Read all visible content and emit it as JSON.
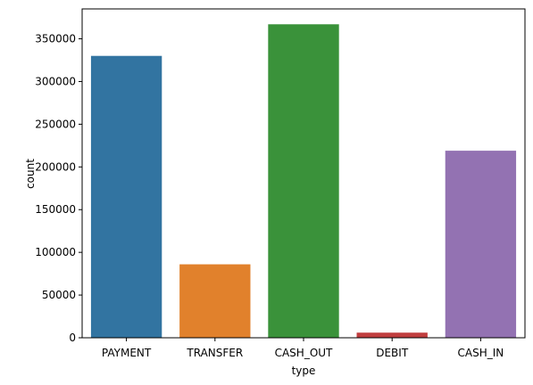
{
  "chart_data": {
    "type": "bar",
    "title": "",
    "xlabel": "type",
    "ylabel": "count",
    "categories": [
      "PAYMENT",
      "TRANSFER",
      "CASH_OUT",
      "DEBIT",
      "CASH_IN"
    ],
    "values": [
      330000,
      86000,
      367000,
      6000,
      219000
    ],
    "colors": [
      "#3274a1",
      "#e1812c",
      "#3a923a",
      "#c03d3e",
      "#9372b2"
    ],
    "ylim": [
      0,
      385000
    ],
    "yticks": [
      0,
      50000,
      100000,
      150000,
      200000,
      250000,
      300000,
      350000
    ],
    "ytick_labels": [
      "0",
      "50000",
      "100000",
      "150000",
      "200000",
      "250000",
      "300000",
      "350000"
    ],
    "grid": false,
    "legend": "none"
  }
}
